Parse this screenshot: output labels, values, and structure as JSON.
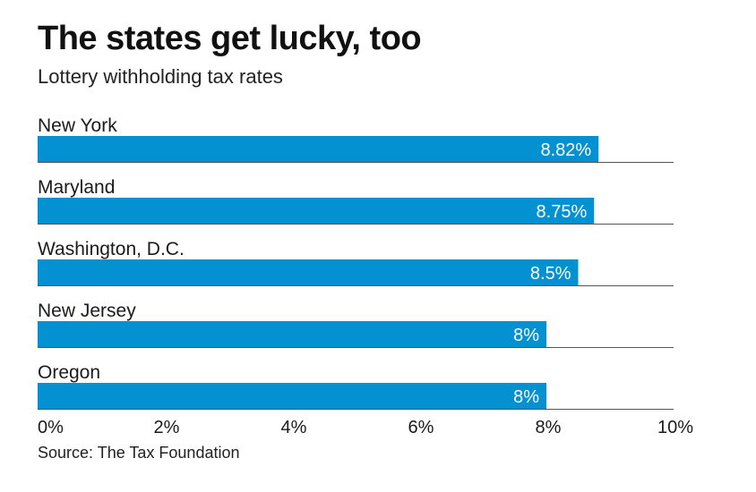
{
  "header": {
    "title": "The states get lucky, too",
    "subtitle": "Lottery withholding tax rates"
  },
  "source": "Source: The Tax Foundation",
  "colors": {
    "bar": "#0391d1",
    "bar_label": "#ffffff",
    "rule": "#555555",
    "text": "#1a1a1a"
  },
  "chart_data": {
    "type": "bar",
    "orientation": "horizontal",
    "title": "The states get lucky, too",
    "subtitle": "Lottery withholding tax rates",
    "categories": [
      "New York",
      "Maryland",
      "Washington, D.C.",
      "New Jersey",
      "Oregon"
    ],
    "values": [
      8.82,
      8.75,
      8.5,
      8,
      8
    ],
    "value_labels": [
      "8.82%",
      "8.75%",
      "8.5%",
      "8%",
      "8%"
    ],
    "xlim": [
      0,
      10
    ],
    "xticks": [
      0,
      2,
      4,
      6,
      8,
      10
    ],
    "xtick_labels": [
      "0%",
      "2%",
      "4%",
      "6%",
      "8%",
      "10%"
    ],
    "xlabel": "",
    "ylabel": "",
    "grid": false,
    "legend": "none"
  }
}
